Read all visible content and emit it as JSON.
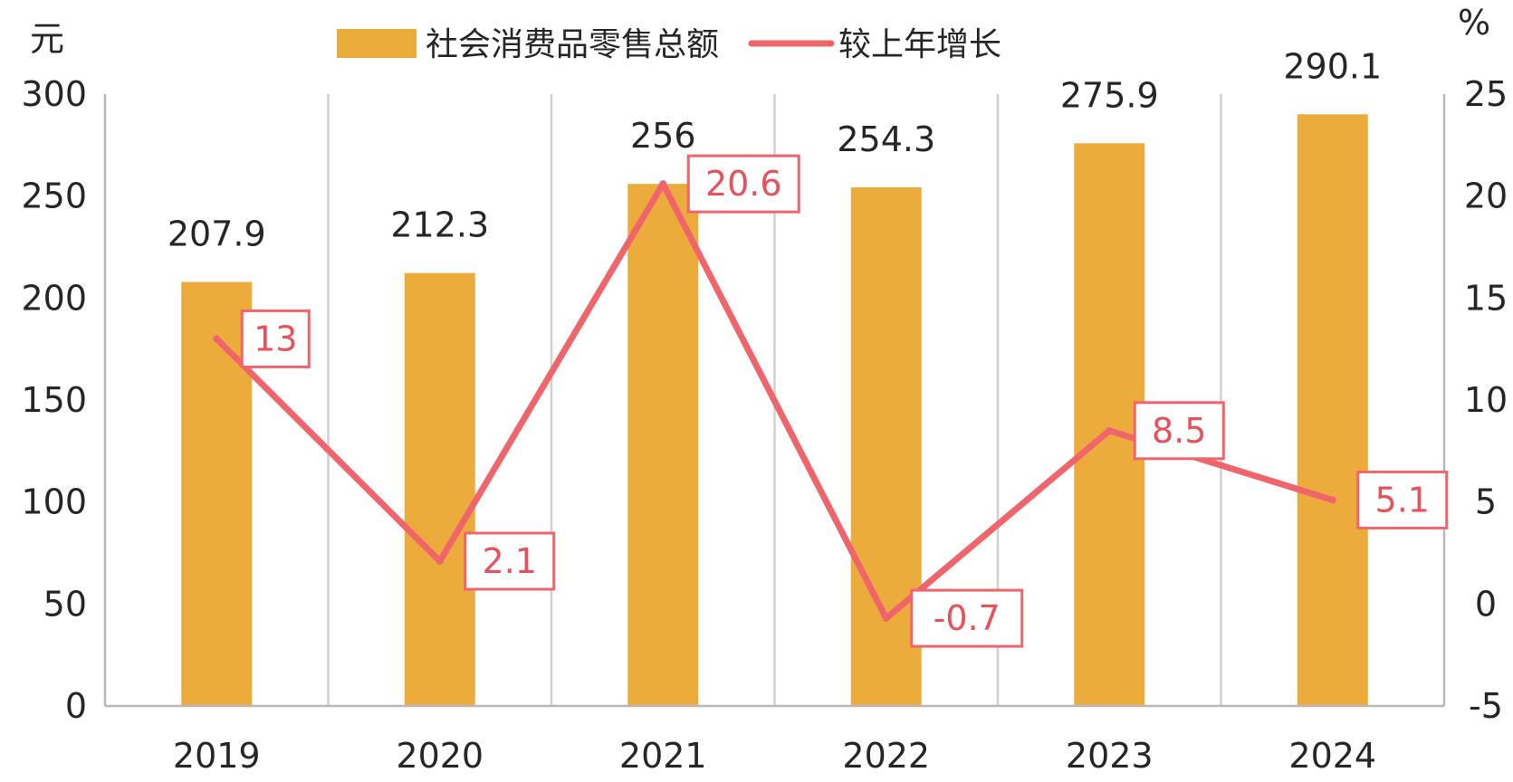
{
  "chart_data": {
    "type": "bar",
    "title": "",
    "categories": [
      "2019",
      "2020",
      "2021",
      "2022",
      "2023",
      "2024"
    ],
    "series": [
      {
        "name": "社会消费品零售总额",
        "type": "bar",
        "axis": "left",
        "values": [
          207.9,
          212.3,
          256,
          254.3,
          275.9,
          290.1
        ],
        "labels": [
          "207.9",
          "212.3",
          "256",
          "254.3",
          "275.9",
          "290.1"
        ]
      },
      {
        "name": "较上年增长",
        "type": "line",
        "axis": "right",
        "values": [
          13,
          2.1,
          20.6,
          -0.7,
          8.5,
          5.1
        ],
        "labels": [
          "13",
          "2.1",
          "20.6",
          "-0.7",
          "8.5",
          "5.1"
        ]
      }
    ],
    "left_axis": {
      "unit": "元",
      "ylim": [
        0,
        300
      ],
      "ticks": [
        "0",
        "50",
        "100",
        "150",
        "200",
        "250",
        "300"
      ]
    },
    "right_axis": {
      "unit": "%",
      "ylim": [
        -5,
        25
      ],
      "ticks": [
        "-5",
        "0",
        "5",
        "10",
        "15",
        "20",
        "25"
      ]
    },
    "grid": "vertical",
    "legend_position": "top",
    "colors": {
      "bar": "#ECAC3B",
      "line": "#F0646C",
      "label_box_border": "#F0646C",
      "label_text": "#E8505A",
      "grid": "#D0D0D0",
      "axis": "#B8B8B8",
      "text": "#262626"
    }
  }
}
